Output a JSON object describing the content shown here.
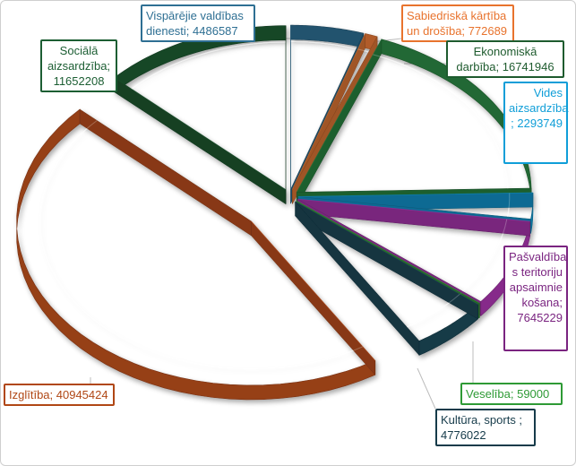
{
  "chart_data": {
    "type": "pie",
    "style": "3d-exploded",
    "title": "",
    "slices": [
      {
        "name": "Vispārējie valdības dienesti",
        "label": "Vispārējie valdības\ndienesti; 4486587",
        "value": 4486587,
        "color": "#2e6f93",
        "text_color": "#2e6f93"
      },
      {
        "name": "Sabiedriskā kārtība un drošība",
        "label": "Sabiedriskā kārtība\nun drošība; 772689",
        "value": 772689,
        "color": "#ec7b36",
        "text_color": "#e8732d"
      },
      {
        "name": "Ekonomiskā darbība",
        "label": "Ekonomiskā\ndarbība; 16741946",
        "value": 16741946,
        "color": "#2d8a45",
        "text_color": "#1e5b2e"
      },
      {
        "name": "Vides aizsardzība",
        "label": "Vides\naizsardzība\n; 2293749",
        "value": 2293749,
        "color": "#0f9ed8",
        "text_color": "#0f9ed8"
      },
      {
        "name": "Pašvaldība s teritoriju apsaimniekošana",
        "label": "Pašvaldība\ns teritoriju\napsaimnie\nkošana;\n7645229",
        "value": 7645229,
        "color": "#b23ab8",
        "text_color": "#7a2480"
      },
      {
        "name": "Veselība",
        "label": "Veselība; 59000",
        "value": 59000,
        "color": "#3aa040",
        "text_color": "#2e9a35"
      },
      {
        "name": "Kultūra, sports",
        "label": "Kultūra, sports ;\n4776022",
        "value": 4776022,
        "color": "#1d4d5f",
        "text_color": "#163b4a"
      },
      {
        "name": "Izglītība",
        "label": "Izglītība; 40945424",
        "value": 40945424,
        "color": "#c85420",
        "text_color": "#b04715"
      },
      {
        "name": "Sociālā aizsardzība",
        "label": "Sociālā\naizsardzība;\n11652208",
        "value": 11652208,
        "color": "#1c5e33",
        "text_color": "#1c5e33"
      }
    ]
  }
}
